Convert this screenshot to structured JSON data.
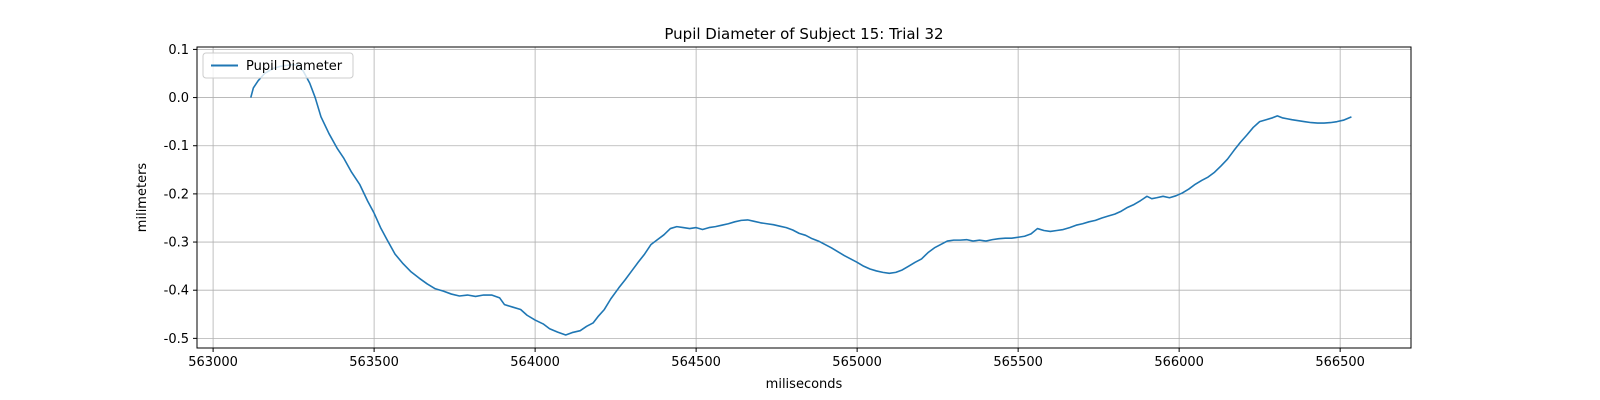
{
  "chart_data": {
    "type": "line",
    "title": "Pupil Diameter of Subject 15: Trial 32",
    "xlabel": "miliseconds",
    "ylabel": "milimeters",
    "xlim": [
      562950,
      566720
    ],
    "ylim": [
      -0.52,
      0.105
    ],
    "xticks": [
      563000,
      563500,
      564000,
      564500,
      565000,
      565500,
      566000,
      566500
    ],
    "yticks": [
      0.1,
      0.0,
      -0.1,
      -0.2,
      -0.3,
      -0.4,
      -0.5
    ],
    "grid": true,
    "legend_position": "top-left",
    "series": [
      {
        "name": "Pupil Diameter",
        "color": "#1f77b4",
        "points": [
          [
            563117,
            0.0
          ],
          [
            563125,
            0.02
          ],
          [
            563140,
            0.035
          ],
          [
            563160,
            0.05
          ],
          [
            563185,
            0.06
          ],
          [
            563210,
            0.065
          ],
          [
            563240,
            0.068
          ],
          [
            563262,
            0.068
          ],
          [
            563280,
            0.055
          ],
          [
            563300,
            0.03
          ],
          [
            563317,
            0.0
          ],
          [
            563335,
            -0.04
          ],
          [
            563360,
            -0.075
          ],
          [
            563385,
            -0.105
          ],
          [
            563405,
            -0.125
          ],
          [
            563430,
            -0.155
          ],
          [
            563455,
            -0.18
          ],
          [
            563480,
            -0.215
          ],
          [
            563500,
            -0.24
          ],
          [
            563520,
            -0.27
          ],
          [
            563540,
            -0.295
          ],
          [
            563565,
            -0.325
          ],
          [
            563590,
            -0.345
          ],
          [
            563615,
            -0.362
          ],
          [
            563640,
            -0.375
          ],
          [
            563665,
            -0.387
          ],
          [
            563690,
            -0.397
          ],
          [
            563715,
            -0.402
          ],
          [
            563740,
            -0.408
          ],
          [
            563765,
            -0.412
          ],
          [
            563790,
            -0.41
          ],
          [
            563815,
            -0.413
          ],
          [
            563840,
            -0.41
          ],
          [
            563865,
            -0.41
          ],
          [
            563890,
            -0.416
          ],
          [
            563905,
            -0.43
          ],
          [
            563930,
            -0.435
          ],
          [
            563955,
            -0.44
          ],
          [
            563975,
            -0.452
          ],
          [
            564000,
            -0.462
          ],
          [
            564025,
            -0.47
          ],
          [
            564045,
            -0.48
          ],
          [
            564070,
            -0.487
          ],
          [
            564095,
            -0.493
          ],
          [
            564115,
            -0.488
          ],
          [
            564140,
            -0.484
          ],
          [
            564160,
            -0.475
          ],
          [
            564180,
            -0.468
          ],
          [
            564195,
            -0.455
          ],
          [
            564215,
            -0.44
          ],
          [
            564235,
            -0.418
          ],
          [
            564260,
            -0.395
          ],
          [
            564280,
            -0.378
          ],
          [
            564300,
            -0.36
          ],
          [
            564320,
            -0.342
          ],
          [
            564340,
            -0.325
          ],
          [
            564360,
            -0.305
          ],
          [
            564380,
            -0.295
          ],
          [
            564400,
            -0.285
          ],
          [
            564420,
            -0.272
          ],
          [
            564440,
            -0.268
          ],
          [
            564460,
            -0.27
          ],
          [
            564480,
            -0.272
          ],
          [
            564500,
            -0.27
          ],
          [
            564520,
            -0.274
          ],
          [
            564540,
            -0.27
          ],
          [
            564560,
            -0.268
          ],
          [
            564580,
            -0.265
          ],
          [
            564600,
            -0.262
          ],
          [
            564620,
            -0.258
          ],
          [
            564640,
            -0.255
          ],
          [
            564660,
            -0.254
          ],
          [
            564680,
            -0.257
          ],
          [
            564700,
            -0.26
          ],
          [
            564720,
            -0.262
          ],
          [
            564740,
            -0.264
          ],
          [
            564760,
            -0.267
          ],
          [
            564780,
            -0.27
          ],
          [
            564800,
            -0.275
          ],
          [
            564820,
            -0.282
          ],
          [
            564840,
            -0.286
          ],
          [
            564860,
            -0.293
          ],
          [
            564880,
            -0.298
          ],
          [
            564900,
            -0.305
          ],
          [
            564920,
            -0.312
          ],
          [
            564940,
            -0.32
          ],
          [
            564960,
            -0.328
          ],
          [
            564980,
            -0.335
          ],
          [
            565000,
            -0.342
          ],
          [
            565020,
            -0.35
          ],
          [
            565040,
            -0.356
          ],
          [
            565060,
            -0.36
          ],
          [
            565080,
            -0.363
          ],
          [
            565100,
            -0.365
          ],
          [
            565120,
            -0.363
          ],
          [
            565140,
            -0.358
          ],
          [
            565160,
            -0.35
          ],
          [
            565180,
            -0.342
          ],
          [
            565200,
            -0.335
          ],
          [
            565220,
            -0.322
          ],
          [
            565240,
            -0.312
          ],
          [
            565260,
            -0.305
          ],
          [
            565280,
            -0.298
          ],
          [
            565300,
            -0.296
          ],
          [
            565320,
            -0.296
          ],
          [
            565340,
            -0.295
          ],
          [
            565360,
            -0.298
          ],
          [
            565380,
            -0.296
          ],
          [
            565400,
            -0.298
          ],
          [
            565420,
            -0.295
          ],
          [
            565440,
            -0.293
          ],
          [
            565460,
            -0.292
          ],
          [
            565480,
            -0.292
          ],
          [
            565500,
            -0.29
          ],
          [
            565520,
            -0.288
          ],
          [
            565540,
            -0.283
          ],
          [
            565560,
            -0.272
          ],
          [
            565580,
            -0.276
          ],
          [
            565600,
            -0.278
          ],
          [
            565620,
            -0.276
          ],
          [
            565640,
            -0.274
          ],
          [
            565660,
            -0.27
          ],
          [
            565680,
            -0.265
          ],
          [
            565700,
            -0.262
          ],
          [
            565720,
            -0.258
          ],
          [
            565740,
            -0.255
          ],
          [
            565760,
            -0.25
          ],
          [
            565780,
            -0.246
          ],
          [
            565800,
            -0.242
          ],
          [
            565820,
            -0.236
          ],
          [
            565840,
            -0.228
          ],
          [
            565860,
            -0.222
          ],
          [
            565880,
            -0.214
          ],
          [
            565900,
            -0.205
          ],
          [
            565915,
            -0.21
          ],
          [
            565930,
            -0.208
          ],
          [
            565950,
            -0.205
          ],
          [
            565970,
            -0.208
          ],
          [
            565990,
            -0.204
          ],
          [
            566010,
            -0.198
          ],
          [
            566030,
            -0.19
          ],
          [
            566050,
            -0.18
          ],
          [
            566070,
            -0.172
          ],
          [
            566090,
            -0.165
          ],
          [
            566110,
            -0.155
          ],
          [
            566130,
            -0.142
          ],
          [
            566150,
            -0.128
          ],
          [
            566170,
            -0.11
          ],
          [
            566190,
            -0.093
          ],
          [
            566210,
            -0.078
          ],
          [
            566230,
            -0.062
          ],
          [
            566250,
            -0.05
          ],
          [
            566270,
            -0.046
          ],
          [
            566290,
            -0.042
          ],
          [
            566305,
            -0.038
          ],
          [
            566320,
            -0.042
          ],
          [
            566335,
            -0.044
          ],
          [
            566350,
            -0.046
          ],
          [
            566370,
            -0.048
          ],
          [
            566390,
            -0.05
          ],
          [
            566410,
            -0.052
          ],
          [
            566430,
            -0.053
          ],
          [
            566450,
            -0.053
          ],
          [
            566470,
            -0.052
          ],
          [
            566490,
            -0.05
          ],
          [
            566510,
            -0.047
          ],
          [
            566535,
            -0.04
          ]
        ]
      }
    ]
  }
}
